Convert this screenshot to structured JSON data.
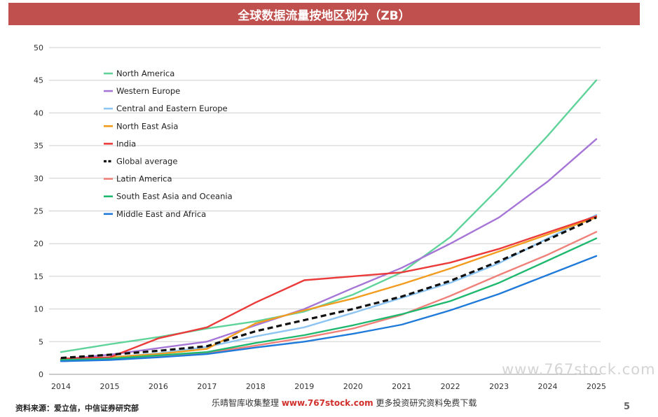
{
  "title": "全球数据流量按地区划分（ZB）",
  "footer": {
    "source": "资料来源：爱立信，中信证券研究部",
    "center_prefix": "乐晴智库收集整理",
    "center_site": "www.767stock.com",
    "center_suffix": "更多投资研究资料免费下载",
    "page": "5"
  },
  "watermark": "www.767stock.com",
  "chart_data": {
    "type": "line",
    "x": [
      "2014",
      "2015",
      "2016",
      "2017",
      "2018",
      "2019",
      "2020",
      "2021",
      "2022",
      "2023",
      "2024",
      "2025"
    ],
    "ylim": [
      0,
      50
    ],
    "yticks": [
      0,
      5,
      10,
      15,
      20,
      25,
      30,
      35,
      40,
      45,
      50
    ],
    "grid": true,
    "legend_position": "top-left",
    "series": [
      {
        "name": "North America",
        "color": "#5fd39a",
        "dash": false,
        "values": [
          3.4,
          4.6,
          5.7,
          7.0,
          8.1,
          9.6,
          12.2,
          15.6,
          21.0,
          28.5,
          36.5,
          45.0
        ]
      },
      {
        "name": "Western Europe",
        "color": "#a676d6",
        "dash": false,
        "values": [
          2.3,
          3.0,
          4.0,
          5.0,
          7.5,
          10.0,
          13.2,
          16.3,
          20.0,
          24.0,
          29.5,
          36.0
        ]
      },
      {
        "name": "Central and Eastern Europe",
        "color": "#8ec5f2",
        "dash": false,
        "values": [
          2.1,
          2.6,
          3.2,
          4.2,
          5.8,
          7.2,
          9.4,
          11.7,
          14.0,
          17.0,
          20.8,
          24.4
        ]
      },
      {
        "name": "North East Asia",
        "color": "#f29c1f",
        "dash": false,
        "values": [
          2.2,
          2.6,
          3.1,
          3.9,
          7.8,
          9.8,
          11.6,
          13.8,
          16.2,
          18.8,
          21.4,
          24.0
        ]
      },
      {
        "name": "India",
        "color": "#eb3a3a",
        "dash": false,
        "values": [
          2.4,
          2.6,
          5.5,
          7.2,
          11.0,
          14.4,
          15.0,
          15.6,
          17.1,
          19.2,
          21.7,
          24.2
        ]
      },
      {
        "name": "Global average",
        "color": "#111111",
        "dash": true,
        "values": [
          2.5,
          3.0,
          3.6,
          4.3,
          6.6,
          8.3,
          10.0,
          11.9,
          14.3,
          17.3,
          20.6,
          24.0
        ]
      },
      {
        "name": "Latin America",
        "color": "#f0807a",
        "dash": false,
        "values": [
          2.0,
          2.3,
          2.8,
          3.3,
          4.4,
          5.6,
          7.0,
          9.1,
          12.0,
          15.2,
          18.3,
          21.8
        ]
      },
      {
        "name": "South East Asia and Oceania",
        "color": "#1fb86f",
        "dash": false,
        "values": [
          2.2,
          2.4,
          2.9,
          3.4,
          4.8,
          6.0,
          7.5,
          9.2,
          11.2,
          14.0,
          17.4,
          20.8
        ]
      },
      {
        "name": "Middle East and Africa",
        "color": "#1f7ad9",
        "dash": false,
        "values": [
          2.0,
          2.2,
          2.6,
          3.1,
          4.1,
          5.0,
          6.2,
          7.6,
          9.8,
          12.3,
          15.2,
          18.1
        ]
      }
    ]
  }
}
